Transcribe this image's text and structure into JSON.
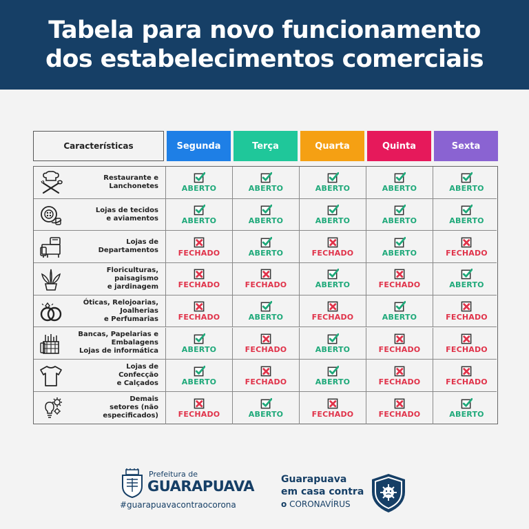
{
  "header": {
    "title_line1": "Tabela para novo funcionamento",
    "title_line2": "dos estabelecimentos comerciais"
  },
  "table": {
    "characteristics_label": "Características",
    "days": [
      {
        "label": "Segunda",
        "color": "#1e7fe6"
      },
      {
        "label": "Terça",
        "color": "#1fc79a"
      },
      {
        "label": "Quarta",
        "color": "#f5a013"
      },
      {
        "label": "Quinta",
        "color": "#e6195b"
      },
      {
        "label": "Sexta",
        "color": "#8a63d2"
      }
    ],
    "rows": [
      {
        "label": "Restaurante e\nLanchonetes",
        "icon": "chef-utensils-icon",
        "statuses": [
          "ABERTO",
          "ABERTO",
          "ABERTO",
          "ABERTO",
          "ABERTO"
        ]
      },
      {
        "label": "Lojas de tecidos\ne aviamentos",
        "icon": "fabric-button-icon",
        "statuses": [
          "ABERTO",
          "ABERTO",
          "ABERTO",
          "ABERTO",
          "ABERTO"
        ]
      },
      {
        "label": "Lojas de\nDepartamentos",
        "icon": "department-store-icon",
        "statuses": [
          "FECHADO",
          "ABERTO",
          "FECHADO",
          "ABERTO",
          "FECHADO"
        ]
      },
      {
        "label": "Floriculturas,\npaisagismo\ne jardinagem",
        "icon": "potted-plant-icon",
        "statuses": [
          "FECHADO",
          "FECHADO",
          "ABERTO",
          "FECHADO",
          "ABERTO"
        ]
      },
      {
        "label": "Óticas, Relojoarias,\nJoalherias\ne Perfumarias",
        "icon": "rings-icon",
        "statuses": [
          "FECHADO",
          "ABERTO",
          "FECHADO",
          "ABERTO",
          "FECHADO"
        ]
      },
      {
        "label": "Bancas, Papelarias e\nEmbalagens\nLojas de informática",
        "icon": "stationery-icon",
        "statuses": [
          "ABERTO",
          "FECHADO",
          "ABERTO",
          "FECHADO",
          "FECHADO"
        ]
      },
      {
        "label": "Lojas de\nConfecção\ne Calçados",
        "icon": "tshirt-icon",
        "statuses": [
          "ABERTO",
          "FECHADO",
          "ABERTO",
          "FECHADO",
          "FECHADO"
        ]
      },
      {
        "label": "Demais\nsetores (não\nespecificados)",
        "icon": "idea-gears-icon",
        "statuses": [
          "FECHADO",
          "ABERTO",
          "FECHADO",
          "FECHADO",
          "ABERTO"
        ]
      }
    ],
    "status_colors": {
      "ABERTO": "#1fa97a",
      "FECHADO": "#e0334a"
    }
  },
  "footer": {
    "prefeitura_de": "Prefeitura de",
    "city": "GUARAPUAVA",
    "hashtag": "#guarapuavacontraocorona",
    "campaign_line1": "Guarapuava",
    "campaign_line2": "em casa contra",
    "campaign_o": "o",
    "campaign_line3": "CORONAVÍRUS"
  }
}
